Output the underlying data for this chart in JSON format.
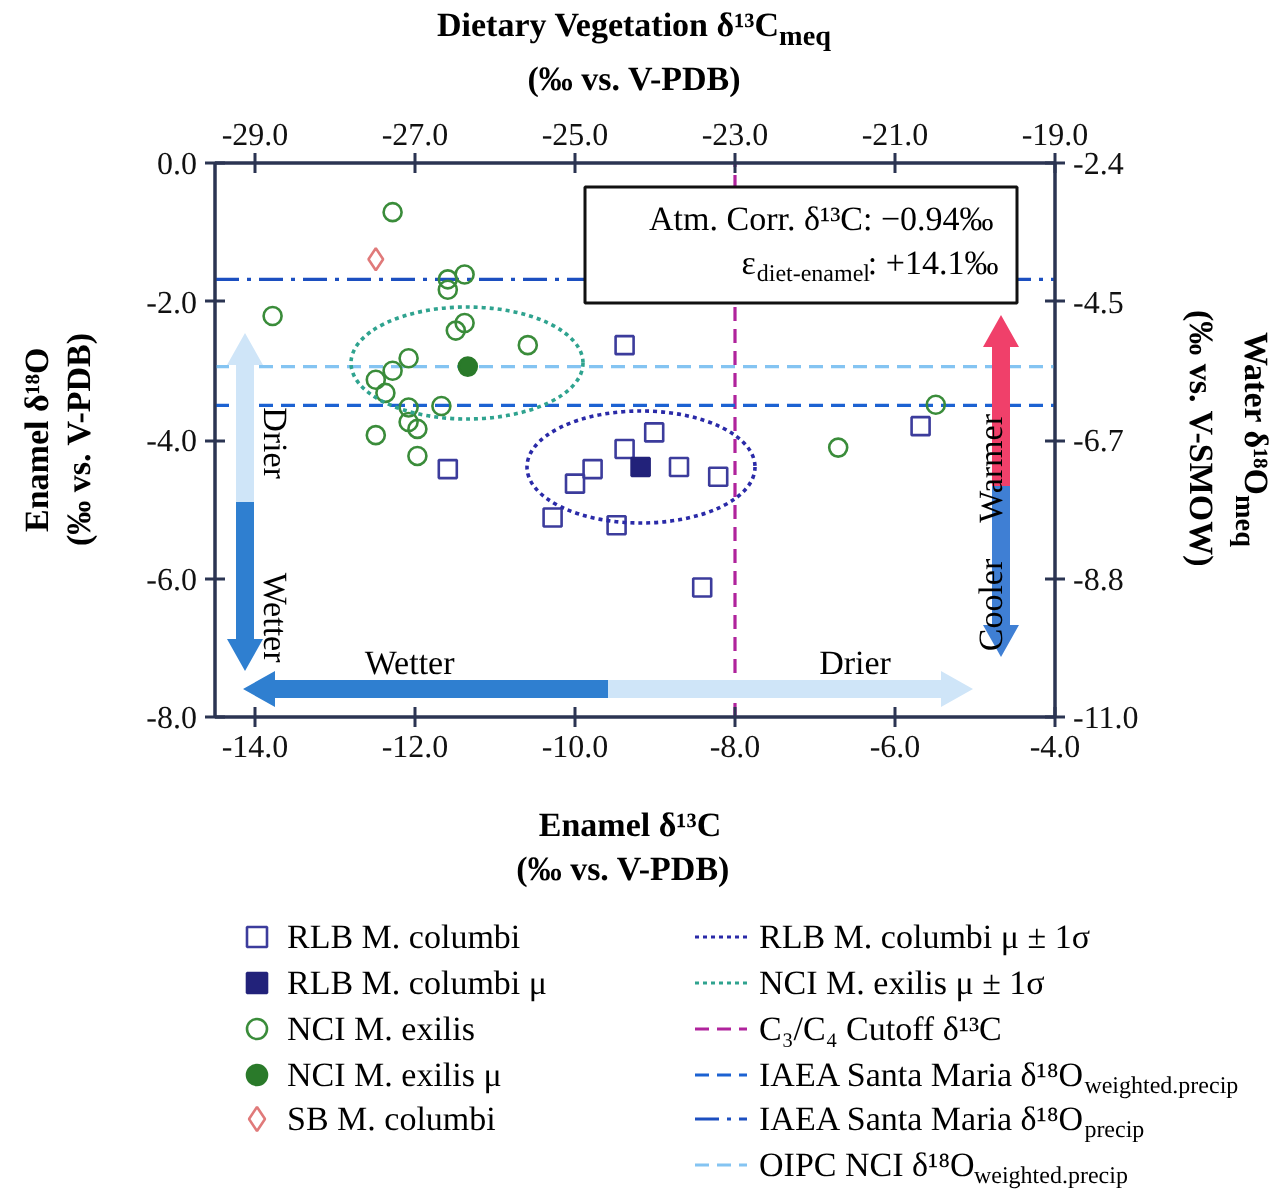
{
  "chart_data": {
    "type": "scatter",
    "xlabel": "Enamel δ¹³C\n(‰ vs. V-PDB)",
    "ylabel": "Enamel δ¹⁸O\n(‰ vs. V-PDB)",
    "x2label": "Dietary Vegetation δ¹³C$_{meq}$\n(‰ vs. V-PDB)",
    "y2label": "Water δ¹⁸O$_{meq}$\n(‰ vs. V-SMOW)",
    "xlim": [
      -14.5,
      -4.0
    ],
    "xticks": [
      {
        "value": -14,
        "label": "-14.0"
      },
      {
        "value": -12,
        "label": "-12.0"
      },
      {
        "value": -10,
        "label": "-10.0"
      },
      {
        "value": -8,
        "label": "-8.0"
      },
      {
        "value": -6,
        "label": "-6.0"
      },
      {
        "value": -4,
        "label": "-4.0"
      }
    ],
    "x2lim": [
      -29.5,
      -19.0
    ],
    "x2ticks": [
      {
        "value": -29,
        "label": "-29.0"
      },
      {
        "value": -27,
        "label": "-27.0"
      },
      {
        "value": -25,
        "label": "-25.0"
      },
      {
        "value": -23,
        "label": "-23.0"
      },
      {
        "value": -21,
        "label": "-21.0"
      },
      {
        "value": -19,
        "label": "-19.0"
      }
    ],
    "ylim": [
      -8.0,
      0.0
    ],
    "yticks": [
      {
        "value": 0,
        "label": "0.0"
      },
      {
        "value": -2,
        "label": "-2.0"
      },
      {
        "value": -4,
        "label": "-4.0"
      },
      {
        "value": -6,
        "label": "-6.0"
      },
      {
        "value": -8,
        "label": "-8.0"
      }
    ],
    "y2lim": [
      -11.0,
      -2.4
    ],
    "y2ticks": [
      {
        "value": -2.4,
        "label": "-2.4"
      },
      {
        "value": -4.55,
        "label": "-4.5"
      },
      {
        "value": -6.7,
        "label": "-6.7"
      },
      {
        "value": -8.85,
        "label": "-8.8"
      },
      {
        "value": -11.0,
        "label": "-11.0"
      }
    ],
    "grid": false,
    "legend": "bottom",
    "series": [
      {
        "name": "RLB M. columbi",
        "type": "scatter",
        "marker": "square",
        "color": "#3c3c9c",
        "x": [
          -11.59,
          -10.0,
          -9.78,
          -10.28,
          -9.48,
          -9.38,
          -9.38,
          -9.01,
          -8.7,
          -8.21,
          -8.41,
          -5.68
        ],
        "values": [
          -4.42,
          -4.63,
          -4.42,
          -5.12,
          -5.23,
          -4.13,
          -2.63,
          -3.89,
          -4.39,
          -4.53,
          -6.13,
          -3.8
        ]
      },
      {
        "name": "RLB M. columbi μ",
        "type": "scatter",
        "marker": "square",
        "color": "#22227a",
        "x": [
          -9.18
        ],
        "values": [
          -4.39
        ]
      },
      {
        "name": "NCI M. exilis",
        "type": "scatter",
        "marker": "circle",
        "color": "#3a8c3a",
        "x": [
          -12.28,
          -13.78,
          -11.38,
          -11.59,
          -11.59,
          -11.38,
          -11.49,
          -10.59,
          -12.08,
          -12.28,
          -12.49,
          -12.37,
          -12.08,
          -11.67,
          -12.08,
          -11.97,
          -12.49,
          -11.97,
          -6.71,
          -5.49
        ],
        "values": [
          -0.71,
          -2.21,
          -1.61,
          -1.68,
          -1.83,
          -2.31,
          -2.42,
          -2.63,
          -2.82,
          -3.0,
          -3.13,
          -3.32,
          -3.53,
          -3.51,
          -3.74,
          -3.84,
          -3.93,
          -4.23,
          -4.11,
          -3.49
        ]
      },
      {
        "name": "NCI M. exilis μ",
        "type": "scatter",
        "marker": "circle",
        "color": "#2a7a2a",
        "x": [
          -11.34
        ],
        "values": [
          -2.94
        ]
      },
      {
        "name": "SB M. columbi",
        "type": "scatter",
        "marker": "diamond",
        "color": "#e07a7a",
        "x": [
          -12.49
        ],
        "values": [
          -1.39
        ]
      }
    ],
    "ref_lines": [
      {
        "axis": "x",
        "value": -8.0,
        "label": "C₃/C₄ Cutoff δ¹³C",
        "color": "#b0239c",
        "line_style": "dashed"
      },
      {
        "axis": "y",
        "value": -3.5,
        "label": "IAEA Santa Maria δ¹⁸O$_{weighted.precip}$",
        "color": "#1c62d2",
        "line_style": "dashed"
      },
      {
        "axis": "y",
        "value": -1.68,
        "label": "IAEA Santa Maria δ¹⁸O$_{precip}$",
        "color": "#1c4fc0",
        "line_style": "dashdot"
      },
      {
        "axis": "y",
        "value": -2.94,
        "label": "OIPC NCI δ¹⁸O$_{weighted.precip}$",
        "color": "#84c4f2",
        "line_style": "dashed"
      }
    ],
    "annotations": [
      "Atm. Corr. δ¹³C:  −0.94‰",
      "ε$_{diet-enamel}$:  +14.1‰",
      "Drier",
      "Wetter",
      "Wetter",
      "Drier",
      "Cooler",
      "Warmer",
      "RLB M. columbi μ ± 1σ",
      "NCI M. exilis μ ± 1σ"
    ]
  }
}
